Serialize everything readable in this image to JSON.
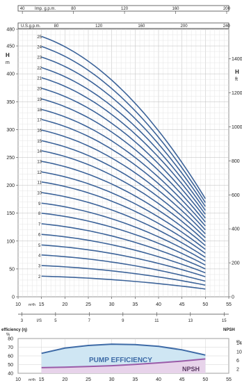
{
  "axes": {
    "imp_gpm": {
      "unit": "Imp. g.p.m.",
      "ticks": [
        "40",
        "80",
        "120",
        "160",
        "200"
      ]
    },
    "us_gpm": {
      "unit": "U.S.g.p.m.",
      "ticks": [
        "80",
        "120",
        "160",
        "200",
        "240"
      ]
    },
    "head_m": {
      "symbol": "H",
      "unit": "m",
      "ticks": [
        "0",
        "50",
        "100",
        "150",
        "200",
        "250",
        "300",
        "350",
        "400",
        "450",
        "480"
      ]
    },
    "head_ft": {
      "symbol": "H",
      "unit": "ft",
      "ticks": [
        "0",
        "200",
        "400",
        "600",
        "800",
        "1000",
        "1200",
        "1400"
      ]
    },
    "flow_m3h": {
      "unit": "m³/h",
      "ticks": [
        "10",
        "15",
        "20",
        "25",
        "30",
        "35",
        "40",
        "45",
        "50",
        "55"
      ]
    },
    "flow_ls": {
      "unit": "l/S",
      "ticks": [
        "3",
        "5",
        "7",
        "9",
        "11",
        "13",
        "15"
      ]
    },
    "efficiency": {
      "label": "efficiency (η)",
      "unit": "%",
      "ticks": [
        "40",
        "50",
        "60",
        "70",
        "80"
      ]
    },
    "npsh": {
      "label": "NPSH",
      "unit": "m",
      "ticks": [
        "2",
        "6",
        "10",
        "14"
      ]
    },
    "flow_m3h_bottom": {
      "unit": "m³/h",
      "ticks": [
        "10",
        "15",
        "20",
        "25",
        "30",
        "35",
        "40",
        "45",
        "50",
        "55"
      ]
    }
  },
  "efficiency_panel": {
    "pump_efficiency_label": "PUMP EFFICIENCY",
    "npsh_label": "NPSH"
  },
  "chart_data": [
    {
      "type": "line",
      "xlabel": "m³/h",
      "ylabel": "H m",
      "x": [
        15,
        50
      ],
      "xlim": [
        10,
        55
      ],
      "ylim": [
        0,
        480
      ],
      "grid": true,
      "series": [
        {
          "name": "25",
          "shutoff_head": 467,
          "end_head": 176
        },
        {
          "name": "24",
          "shutoff_head": 449,
          "end_head": 169
        },
        {
          "name": "23",
          "shutoff_head": 430,
          "end_head": 162
        },
        {
          "name": "22",
          "shutoff_head": 411,
          "end_head": 155
        },
        {
          "name": "21",
          "shutoff_head": 393,
          "end_head": 148
        },
        {
          "name": "20",
          "shutoff_head": 374,
          "end_head": 141
        },
        {
          "name": "19",
          "shutoff_head": 355,
          "end_head": 134
        },
        {
          "name": "18",
          "shutoff_head": 336,
          "end_head": 127
        },
        {
          "name": "17",
          "shutoff_head": 318,
          "end_head": 120
        },
        {
          "name": "16",
          "shutoff_head": 299,
          "end_head": 113
        },
        {
          "name": "15",
          "shutoff_head": 280,
          "end_head": 106
        },
        {
          "name": "14",
          "shutoff_head": 262,
          "end_head": 99
        },
        {
          "name": "13",
          "shutoff_head": 243,
          "end_head": 92
        },
        {
          "name": "12",
          "shutoff_head": 224,
          "end_head": 85
        },
        {
          "name": "11",
          "shutoff_head": 206,
          "end_head": 78
        },
        {
          "name": "10",
          "shutoff_head": 187,
          "end_head": 71
        },
        {
          "name": "9",
          "shutoff_head": 168,
          "end_head": 64
        },
        {
          "name": "8",
          "shutoff_head": 150,
          "end_head": 57
        },
        {
          "name": "7",
          "shutoff_head": 131,
          "end_head": 50
        },
        {
          "name": "6",
          "shutoff_head": 112,
          "end_head": 43
        },
        {
          "name": "5",
          "shutoff_head": 93,
          "end_head": 36
        },
        {
          "name": "4",
          "shutoff_head": 75,
          "end_head": 28
        },
        {
          "name": "3",
          "shutoff_head": 56,
          "end_head": 21
        },
        {
          "name": "2",
          "shutoff_head": 37,
          "end_head": 14
        }
      ]
    },
    {
      "type": "line",
      "xlabel": "m³/h",
      "ylabel": "efficiency (η) %",
      "xlim": [
        10,
        55
      ],
      "ylim": [
        40,
        80
      ],
      "series": [
        {
          "name": "PUMP EFFICIENCY",
          "x": [
            15,
            20,
            25,
            30,
            35,
            40,
            45,
            50
          ],
          "values": [
            63,
            69,
            72,
            73.5,
            73,
            71,
            67,
            61
          ]
        },
        {
          "name": "NPSH",
          "x": [
            15,
            20,
            25,
            30,
            35,
            40,
            45,
            50
          ],
          "values": [
            2.6,
            2.8,
            3.1,
            3.5,
            4.1,
            4.8,
            5.6,
            6.6
          ]
        }
      ]
    }
  ]
}
